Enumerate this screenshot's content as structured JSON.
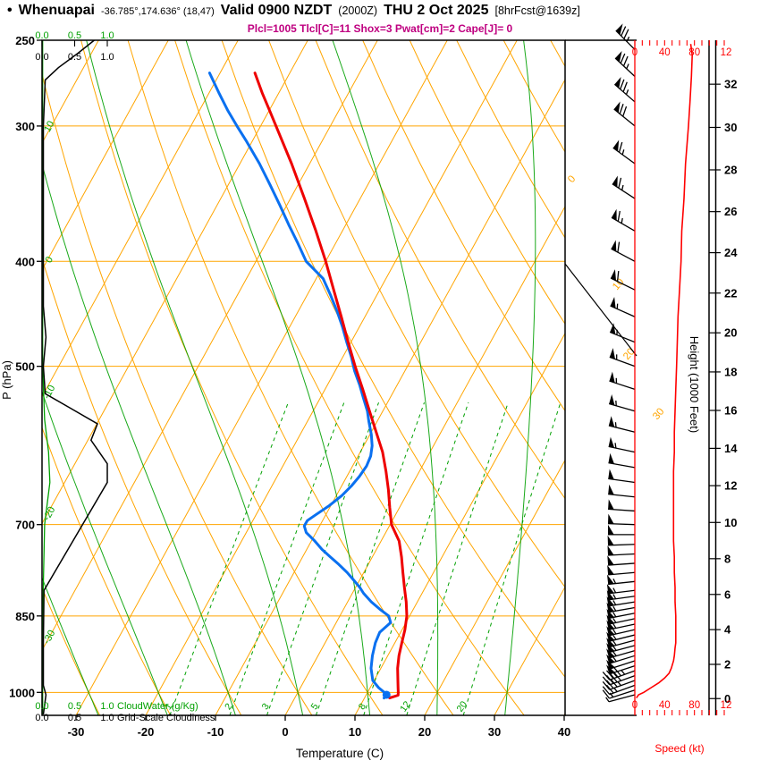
{
  "header": {
    "bullet": "•",
    "station": "Whenuapai",
    "coords": "-36.785°,174.636° (18,47)",
    "valid": "Valid 0900 NZDT",
    "utc": "(2000Z)",
    "date": "THU 2 Oct 2025",
    "fcst": "[8hrFcst@1639z]",
    "indices": "Plcl=1005 Tlcl[C]=11 Shox=3 Pwat[cm]=2 Cape[J]= 0"
  },
  "axes": {
    "pressure_label": "P (hPa)",
    "pressure_ticks": [
      250,
      300,
      400,
      500,
      700,
      850,
      1000
    ],
    "temp_label": "Temperature (C)",
    "temp_ticks": [
      -30,
      -20,
      -10,
      0,
      10,
      20,
      30,
      40
    ],
    "height_label": "Height (1000 Feet)",
    "height_ticks": [
      0,
      2,
      4,
      6,
      8,
      10,
      12,
      14,
      16,
      18,
      20,
      22,
      24,
      26,
      28,
      30,
      32
    ],
    "speed_label": "Speed (kt)",
    "speed_ticks_top": [
      "0",
      "40",
      "80",
      "12"
    ],
    "speed_ticks_bottom": [
      "0",
      "40",
      "80",
      "12"
    ],
    "cloud_scale": [
      "0.0",
      "0.5",
      "1.0"
    ],
    "cloudwater_label": "CloudWater (g/Kg)",
    "cloudiness_label": "Grid-Scale Cloudiness"
  },
  "chart_data": {
    "type": "skewt-logp",
    "station": "Whenuapai",
    "pressure_range_hpa": [
      250,
      1050
    ],
    "isobars_hpa": [
      300,
      400,
      500,
      700,
      850,
      1000
    ],
    "isotherms_c": {
      "min": -120,
      "max": 40,
      "step": 10
    },
    "dry_adiabats_theta_c": {
      "min": -40,
      "max": 130,
      "step": 10
    },
    "moist_adiabats_c": [
      -30,
      -20,
      -10,
      0,
      10,
      20,
      30
    ],
    "moist_adiabat_edge_labels": [
      "10",
      "0",
      "-10",
      "-20",
      "-30"
    ],
    "isotherm_right_labels": [
      "0",
      "10",
      "20",
      "30"
    ],
    "mixing_ratio_g_kg": [
      1,
      2,
      3,
      5,
      8,
      12,
      20
    ],
    "lcl": {
      "pressure_hpa": 1005,
      "temp_c": 11,
      "marker_dew_c": 12.9
    },
    "temperature_profile": [
      [
        1012,
        13.6
      ],
      [
        1006,
        14.6
      ],
      [
        1000,
        14.4
      ],
      [
        990,
        14.0
      ],
      [
        975,
        13.4
      ],
      [
        950,
        12.4
      ],
      [
        925,
        11.6
      ],
      [
        900,
        11.0
      ],
      [
        875,
        10.4
      ],
      [
        850,
        9.6
      ],
      [
        825,
        8.4
      ],
      [
        800,
        7.0
      ],
      [
        775,
        5.6
      ],
      [
        750,
        4.2
      ],
      [
        725,
        2.6
      ],
      [
        700,
        0.2
      ],
      [
        675,
        -1.4
      ],
      [
        650,
        -3.0
      ],
      [
        625,
        -4.8
      ],
      [
        600,
        -6.8
      ],
      [
        575,
        -9.3
      ],
      [
        550,
        -11.9
      ],
      [
        525,
        -14.6
      ],
      [
        500,
        -17.5
      ],
      [
        475,
        -20.4
      ],
      [
        450,
        -23.4
      ],
      [
        425,
        -26.6
      ],
      [
        400,
        -30.0
      ],
      [
        375,
        -33.8
      ],
      [
        350,
        -38.0
      ],
      [
        325,
        -42.6
      ],
      [
        300,
        -47.8
      ],
      [
        290,
        -50.0
      ],
      [
        280,
        -52.3
      ],
      [
        268,
        -55.0
      ]
    ],
    "dewpoint_profile": [
      [
        1012,
        12.8
      ],
      [
        1006,
        13.0
      ],
      [
        1000,
        12.4
      ],
      [
        990,
        11.2
      ],
      [
        975,
        9.8
      ],
      [
        950,
        8.6
      ],
      [
        925,
        7.8
      ],
      [
        900,
        7.2
      ],
      [
        880,
        7.0
      ],
      [
        862,
        7.8
      ],
      [
        850,
        7.0
      ],
      [
        838,
        5.2
      ],
      [
        825,
        3.4
      ],
      [
        810,
        1.6
      ],
      [
        800,
        0.6
      ],
      [
        788,
        -0.8
      ],
      [
        775,
        -2.4
      ],
      [
        762,
        -4.2
      ],
      [
        750,
        -6.0
      ],
      [
        738,
        -7.8
      ],
      [
        725,
        -9.5
      ],
      [
        712,
        -11.4
      ],
      [
        702,
        -12.2
      ],
      [
        694,
        -12.2
      ],
      [
        685,
        -11.4
      ],
      [
        672,
        -10.2
      ],
      [
        658,
        -9.2
      ],
      [
        645,
        -8.6
      ],
      [
        632,
        -8.2
      ],
      [
        618,
        -8.0
      ],
      [
        605,
        -8.2
      ],
      [
        592,
        -8.8
      ],
      [
        578,
        -9.8
      ],
      [
        562,
        -11.2
      ],
      [
        550,
        -12.2
      ],
      [
        535,
        -13.8
      ],
      [
        520,
        -15.4
      ],
      [
        505,
        -17.2
      ],
      [
        490,
        -18.8
      ],
      [
        475,
        -20.6
      ],
      [
        460,
        -22.4
      ],
      [
        445,
        -24.4
      ],
      [
        430,
        -26.6
      ],
      [
        415,
        -29.0
      ],
      [
        400,
        -32.8
      ],
      [
        385,
        -35.4
      ],
      [
        370,
        -38.2
      ],
      [
        355,
        -41.0
      ],
      [
        340,
        -44.0
      ],
      [
        325,
        -47.2
      ],
      [
        310,
        -50.8
      ],
      [
        300,
        -53.4
      ],
      [
        290,
        -56.0
      ],
      [
        280,
        -58.5
      ],
      [
        268,
        -61.5
      ]
    ],
    "wind_barbs": [
      [
        1005,
        255,
        5
      ],
      [
        995,
        252,
        14
      ],
      [
        985,
        250,
        24
      ],
      [
        975,
        250,
        34
      ],
      [
        965,
        250,
        42
      ],
      [
        955,
        250,
        47
      ],
      [
        945,
        252,
        50
      ],
      [
        935,
        252,
        52
      ],
      [
        925,
        253,
        53
      ],
      [
        915,
        254,
        54
      ],
      [
        905,
        255,
        55
      ],
      [
        895,
        255,
        55
      ],
      [
        885,
        256,
        55
      ],
      [
        875,
        257,
        55
      ],
      [
        865,
        258,
        55
      ],
      [
        855,
        258,
        55
      ],
      [
        845,
        259,
        54
      ],
      [
        835,
        260,
        54
      ],
      [
        825,
        261,
        54
      ],
      [
        815,
        262,
        53
      ],
      [
        805,
        263,
        53
      ],
      [
        790,
        264,
        53
      ],
      [
        775,
        265,
        52
      ],
      [
        760,
        266,
        52
      ],
      [
        745,
        267,
        52
      ],
      [
        730,
        268,
        51
      ],
      [
        715,
        270,
        51
      ],
      [
        700,
        272,
        51
      ],
      [
        680,
        274,
        51
      ],
      [
        660,
        276,
        51
      ],
      [
        640,
        278,
        52
      ],
      [
        620,
        280,
        52
      ],
      [
        600,
        282,
        53
      ],
      [
        575,
        284,
        53
      ],
      [
        550,
        286,
        54
      ],
      [
        525,
        288,
        55
      ],
      [
        500,
        290,
        56
      ],
      [
        475,
        292,
        57
      ],
      [
        450,
        294,
        58
      ],
      [
        425,
        296,
        60
      ],
      [
        400,
        298,
        62
      ],
      [
        375,
        300,
        63
      ],
      [
        350,
        303,
        66
      ],
      [
        325,
        306,
        68
      ],
      [
        300,
        309,
        72
      ],
      [
        285,
        311,
        74
      ],
      [
        270,
        313,
        76
      ],
      [
        255,
        315,
        78
      ]
    ],
    "wind_speed_profile_kt": [
      [
        1012,
        2
      ],
      [
        1005,
        5
      ],
      [
        1000,
        12
      ],
      [
        990,
        22
      ],
      [
        980,
        32
      ],
      [
        970,
        40
      ],
      [
        960,
        46
      ],
      [
        950,
        49
      ],
      [
        935,
        52
      ],
      [
        925,
        53
      ],
      [
        910,
        54
      ],
      [
        900,
        55
      ],
      [
        875,
        55
      ],
      [
        850,
        55
      ],
      [
        825,
        54
      ],
      [
        800,
        54
      ],
      [
        775,
        53
      ],
      [
        750,
        53
      ],
      [
        725,
        52
      ],
      [
        700,
        52
      ],
      [
        675,
        52
      ],
      [
        650,
        52
      ],
      [
        625,
        52
      ],
      [
        600,
        53
      ],
      [
        575,
        53
      ],
      [
        550,
        54
      ],
      [
        525,
        55
      ],
      [
        500,
        56
      ],
      [
        475,
        57
      ],
      [
        450,
        58
      ],
      [
        425,
        60
      ],
      [
        400,
        62
      ],
      [
        375,
        63
      ],
      [
        350,
        66
      ],
      [
        325,
        68
      ],
      [
        300,
        72
      ],
      [
        285,
        74
      ],
      [
        270,
        76
      ],
      [
        258,
        77
      ],
      [
        252,
        75
      ]
    ],
    "cloudiness_profile": [
      [
        1048,
        0.02
      ],
      [
        1005,
        0.06
      ],
      [
        985,
        0.02
      ],
      [
        900,
        0.02
      ],
      [
        805,
        0.03
      ],
      [
        640,
        1.0
      ],
      [
        615,
        1.0
      ],
      [
        585,
        0.75
      ],
      [
        565,
        0.85
      ],
      [
        545,
        0.4
      ],
      [
        530,
        0.05
      ],
      [
        500,
        0.02
      ],
      [
        470,
        0.06
      ],
      [
        440,
        0.02
      ],
      [
        300,
        0.02
      ],
      [
        272,
        0.05
      ],
      [
        265,
        0.25
      ],
      [
        257,
        0.55
      ],
      [
        250,
        0.8
      ]
    ],
    "cloud_water_profile": [
      [
        1048,
        0.01
      ],
      [
        850,
        0.01
      ],
      [
        700,
        0.04
      ],
      [
        640,
        0.12
      ],
      [
        600,
        0.1
      ],
      [
        560,
        0.04
      ],
      [
        500,
        0.01
      ],
      [
        250,
        0.01
      ]
    ],
    "colors": {
      "grid_orange": "#ffa500",
      "green": "#00a000",
      "temp_red": "#ee0000",
      "dewpoint_blue": "#0a70f0",
      "axis_red": "#ff0000",
      "magenta": "#bf0080",
      "black": "#000000"
    }
  }
}
